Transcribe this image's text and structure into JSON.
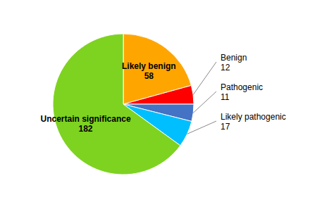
{
  "chart_data": {
    "type": "pie",
    "categories": [
      "Likely benign",
      "Benign",
      "Pathogenic",
      "Likely pathogenic",
      "Uncertain significance"
    ],
    "values": [
      58,
      12,
      11,
      17,
      182
    ],
    "colors": [
      "#FFA500",
      "#FF0000",
      "#4472C4",
      "#00BFFF",
      "#7ED321"
    ],
    "data_labels": true
  }
}
